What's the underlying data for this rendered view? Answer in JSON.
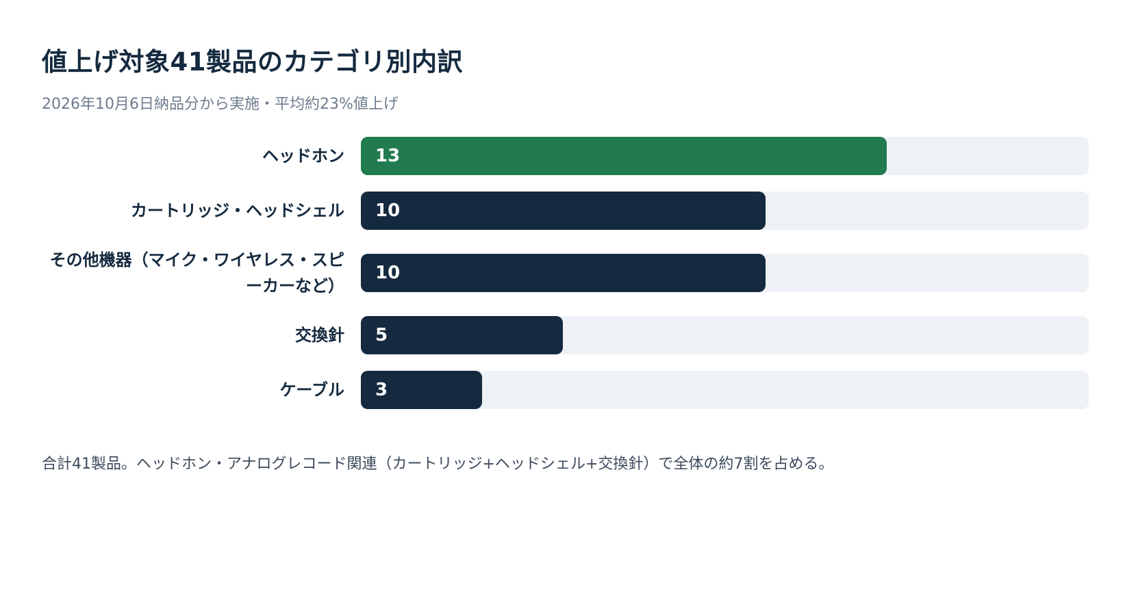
{
  "header": {
    "title": "値上げ対象41製品のカテゴリ別内訳",
    "subtitle": "2026年10月6日納品分から実施・平均約23%値上げ"
  },
  "footnote": "合計41製品。ヘッドホン・アナログレコード関連（カートリッジ+ヘッドシェル+交換針）で全体の約7割を占める。",
  "colors": {
    "highlight": "#217b4f",
    "bar": "#152a3f",
    "track": "#eef1f5"
  },
  "chart_data": {
    "type": "bar",
    "orientation": "horizontal",
    "categories": [
      "ヘッドホン",
      "カートリッジ・ヘッドシェル",
      "その他機器（マイク・ワイヤレス・スピーカーなど）",
      "交換針",
      "ケーブル"
    ],
    "values": [
      13,
      10,
      10,
      5,
      3
    ],
    "value_labels": [
      "13",
      "10",
      "10",
      "5",
      "3"
    ],
    "highlighted_category": "ヘッドホン",
    "xlim": [
      0,
      18
    ],
    "grid": false,
    "legend": "none",
    "title": "",
    "xlabel": "",
    "ylabel": ""
  }
}
